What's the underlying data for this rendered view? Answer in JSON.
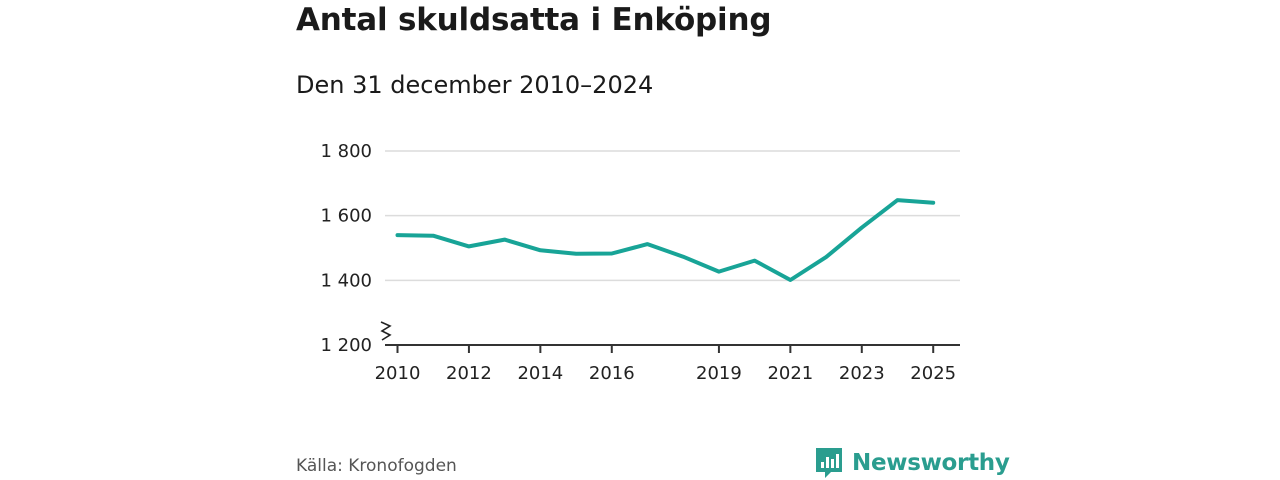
{
  "header": {
    "title": "Antal skuldsatta i Enköping",
    "subtitle": "Den 31 december 2010–2024"
  },
  "footer": {
    "source": "Källa: Kronofogden",
    "brand": "Newsworthy"
  },
  "colors": {
    "line": "#18a497",
    "grid": "#dcdcdc",
    "brand": "#2a9d8f"
  },
  "chart_data": {
    "type": "line",
    "title": "Antal skuldsatta i Enköping",
    "subtitle": "Den 31 december 2010–2024",
    "xlabel": "",
    "ylabel": "",
    "xlim": [
      2009.65,
      2025.75
    ],
    "ylim": [
      1200,
      1800
    ],
    "yaxis_break": true,
    "grid": true,
    "x_ticks": [
      2010,
      2012,
      2014,
      2016,
      2019,
      2021,
      2023,
      2025
    ],
    "x_tick_labels": [
      "2010",
      "2012",
      "2014",
      "2016",
      "2019",
      "2021",
      "2023",
      "2025"
    ],
    "y_ticks": [
      1200,
      1400,
      1600,
      1800
    ],
    "y_tick_labels": [
      "1 200",
      "1 400",
      "1 600",
      "1 800"
    ],
    "series": [
      {
        "name": "Antal skuldsatta",
        "x": [
          2010,
          2011,
          2012,
          2013,
          2014,
          2015,
          2016,
          2017,
          2018,
          2019,
          2020,
          2021,
          2022,
          2023,
          2024,
          2025
        ],
        "values": [
          1540,
          1538,
          1505,
          1526,
          1493,
          1482,
          1483,
          1512,
          1473,
          1427,
          1461,
          1401,
          1472,
          1563,
          1648,
          1640
        ]
      }
    ]
  }
}
